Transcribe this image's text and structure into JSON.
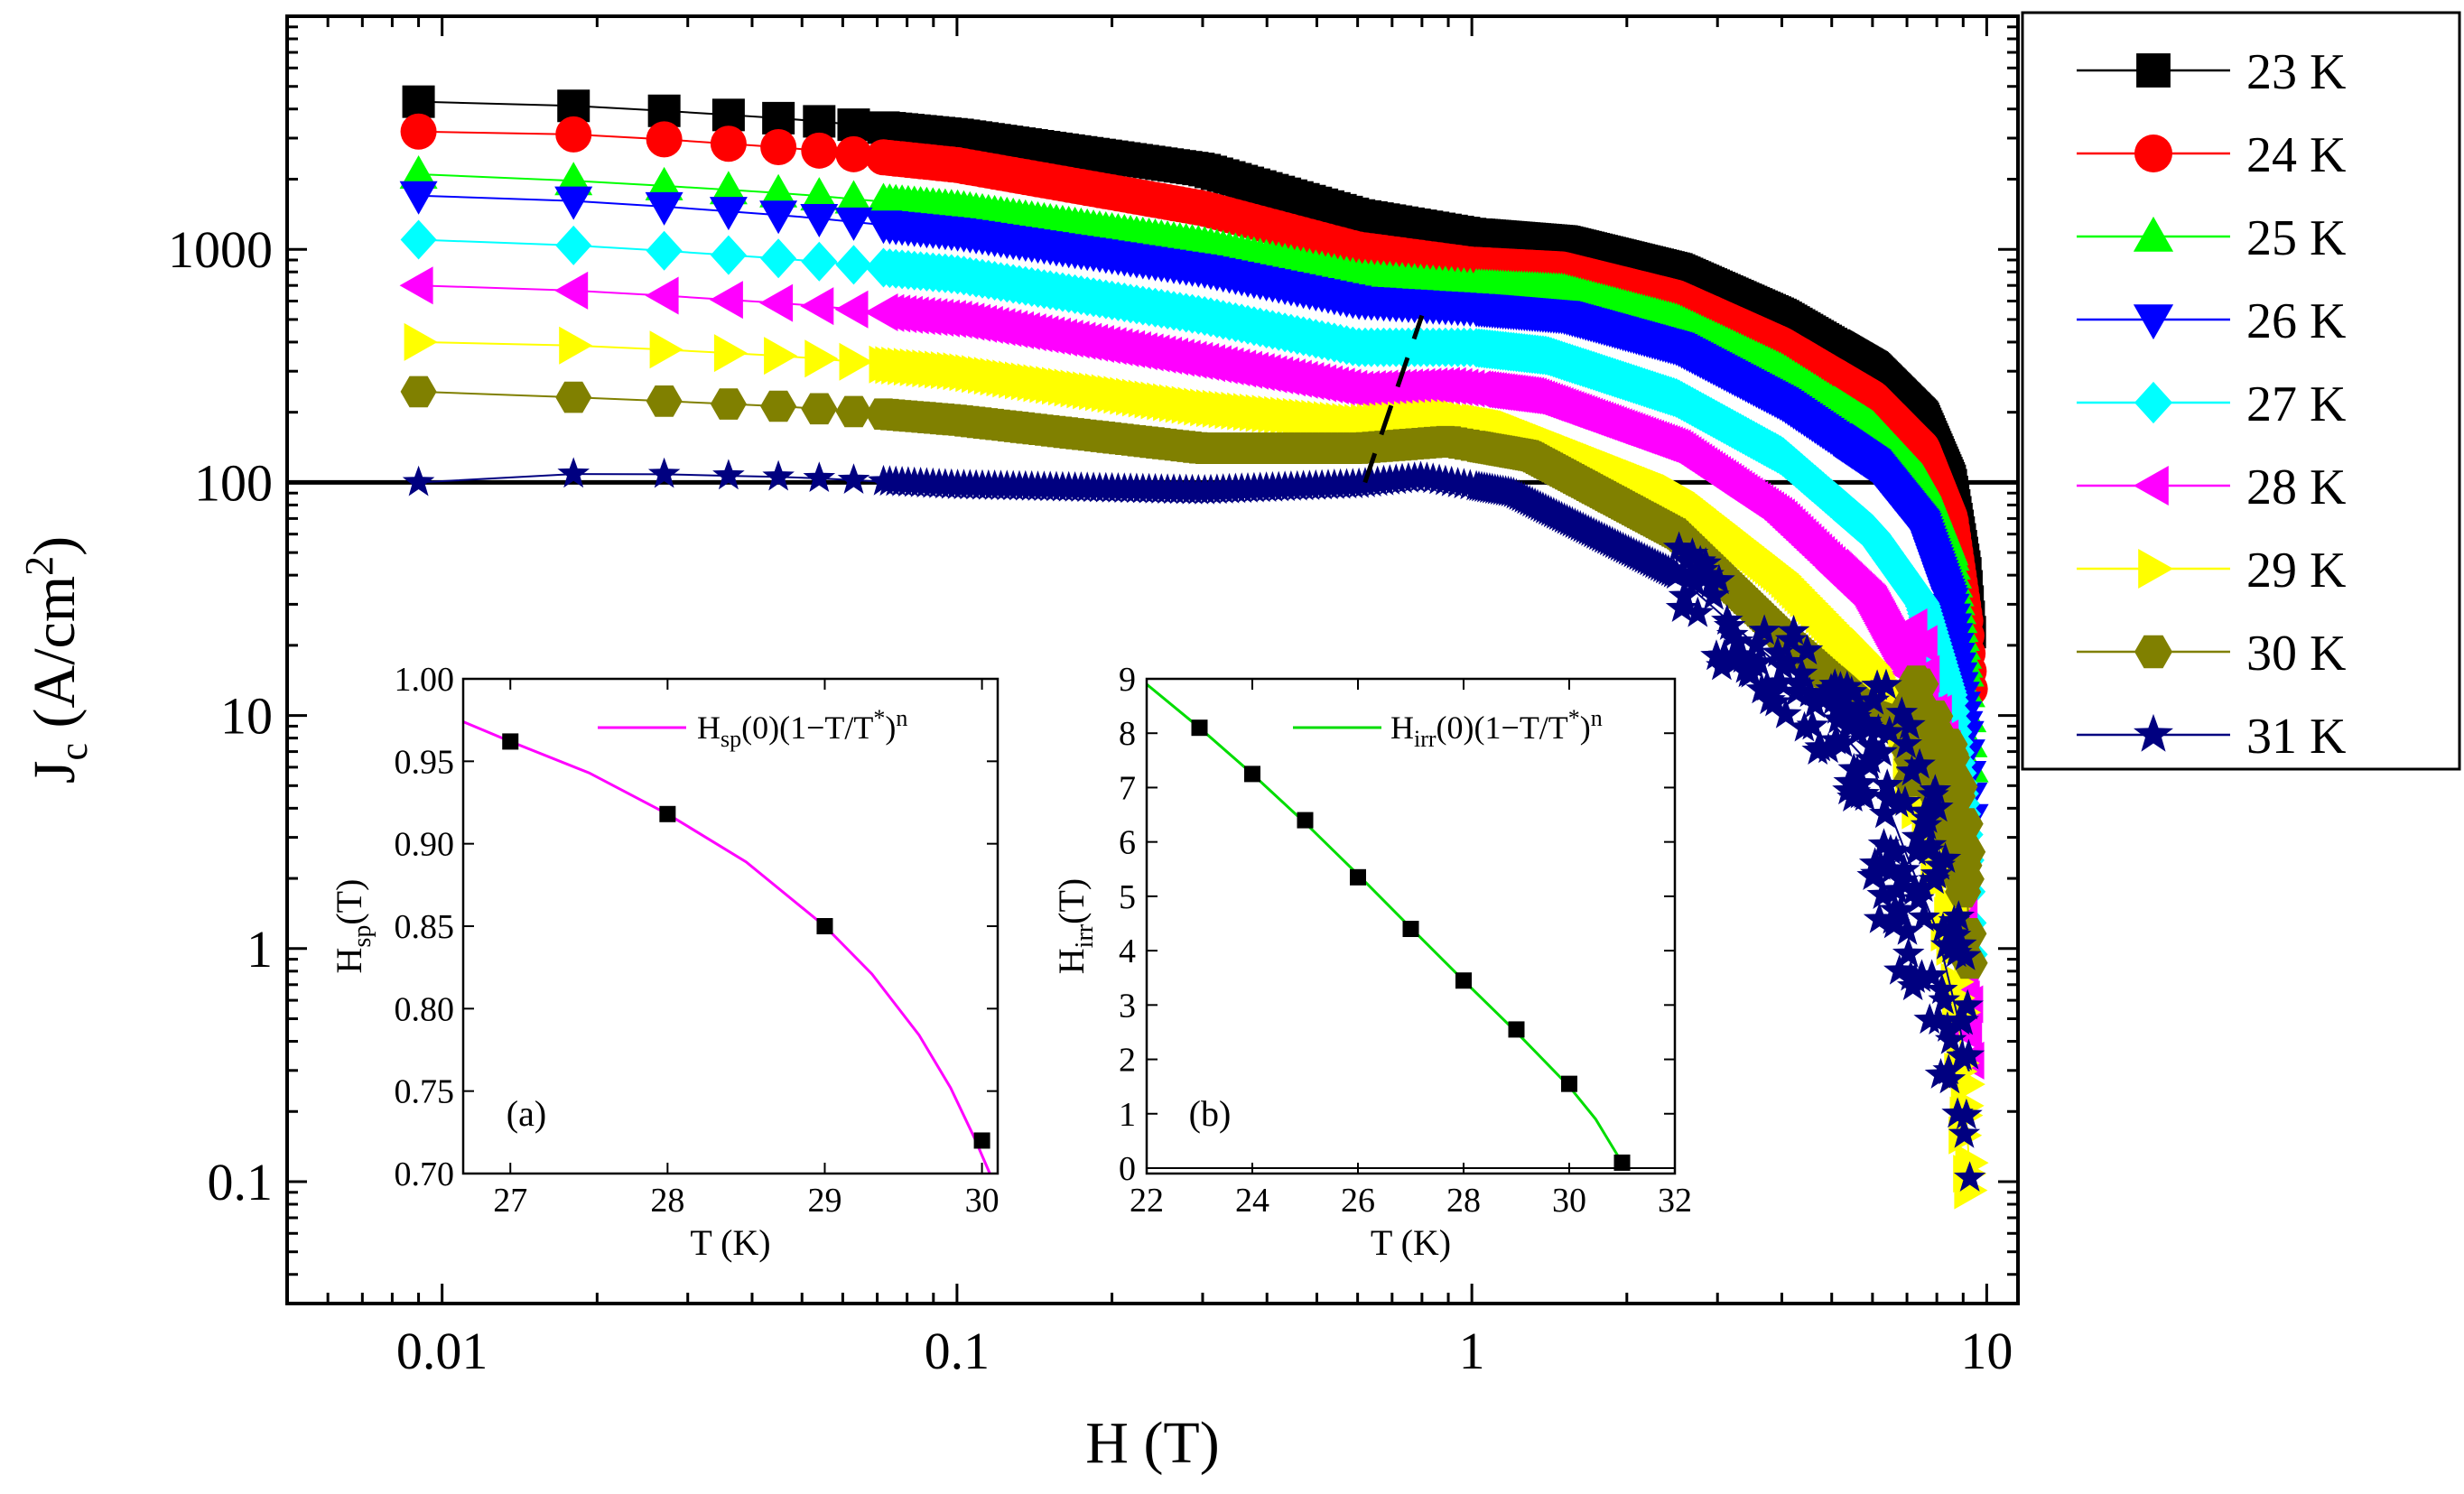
{
  "chart_data": [
    {
      "id": "main",
      "type": "scatter",
      "xscale": "log",
      "yscale": "log",
      "xlim": [
        0.005,
        11.5
      ],
      "ylim": [
        0.03,
        10000
      ],
      "xticks": [
        0.01,
        0.1,
        1,
        10
      ],
      "xtick_labels": [
        "0.01",
        "0.1",
        "1",
        "10"
      ],
      "yticks": [
        0.1,
        1,
        10,
        100,
        1000
      ],
      "ytick_labels": [
        "0.1",
        "1",
        "10",
        "100",
        "1000"
      ],
      "xlabel": "H (T)",
      "ylabel": {
        "base": "J",
        "sub": "c",
        "unit_open": " (A/cm",
        "sup": "2",
        "unit_close": ")"
      },
      "reference_line": {
        "y": 100
      },
      "dashed_line": {
        "points": [
          [
            0.62,
            100
          ],
          [
            0.8,
            520
          ]
        ]
      },
      "series": [
        {
          "name": "23 K",
          "color": "#000000",
          "marker": "square",
          "curve": [
            [
              0.009,
              4300
            ],
            [
              0.02,
              4100
            ],
            [
              0.05,
              3600
            ],
            [
              0.1,
              3100
            ],
            [
              0.3,
              2200
            ],
            [
              0.6,
              1400
            ],
            [
              1,
              1160
            ],
            [
              1.5,
              1080
            ],
            [
              2.5,
              820
            ],
            [
              4,
              520
            ],
            [
              6,
              310
            ],
            [
              7.5,
              190
            ],
            [
              8.5,
              100
            ],
            [
              9.1,
              40
            ],
            [
              9.4,
              15
            ]
          ]
        },
        {
          "name": "24 K",
          "color": "#ff0000",
          "marker": "circle",
          "curve": [
            [
              0.009,
              3200
            ],
            [
              0.02,
              3100
            ],
            [
              0.05,
              2700
            ],
            [
              0.1,
              2300
            ],
            [
              0.3,
              1500
            ],
            [
              0.6,
              1000
            ],
            [
              1,
              860
            ],
            [
              1.5,
              820
            ],
            [
              2.5,
              620
            ],
            [
              4,
              390
            ],
            [
              6,
              230
            ],
            [
              7.5,
              140
            ],
            [
              8.5,
              70
            ],
            [
              9.1,
              25
            ],
            [
              9.4,
              8
            ]
          ]
        },
        {
          "name": "25 K",
          "color": "#00ff00",
          "marker": "triangle-up",
          "curve": [
            [
              0.009,
              2100
            ],
            [
              0.02,
              1950
            ],
            [
              0.05,
              1720
            ],
            [
              0.1,
              1500
            ],
            [
              0.3,
              1050
            ],
            [
              0.6,
              760
            ],
            [
              1,
              690
            ],
            [
              1.5,
              660
            ],
            [
              2.5,
              490
            ],
            [
              4,
              300
            ],
            [
              6,
              170
            ],
            [
              7.5,
              100
            ],
            [
              8.5,
              50
            ],
            [
              9.1,
              15
            ],
            [
              9.4,
              3
            ]
          ]
        },
        {
          "name": "26 K",
          "color": "#0000ff",
          "marker": "triangle-down",
          "curve": [
            [
              0.009,
              1700
            ],
            [
              0.02,
              1600
            ],
            [
              0.05,
              1380
            ],
            [
              0.1,
              1180
            ],
            [
              0.3,
              820
            ],
            [
              0.6,
              600
            ],
            [
              1,
              560
            ],
            [
              1.5,
              520
            ],
            [
              2.5,
              380
            ],
            [
              4,
              220
            ],
            [
              6,
              120
            ],
            [
              7.5,
              65
            ],
            [
              8.5,
              30
            ],
            [
              9.1,
              8
            ],
            [
              9.4,
              2
            ]
          ]
        },
        {
          "name": "27 K",
          "color": "#00ffff",
          "marker": "diamond",
          "curve": [
            [
              0.009,
              1100
            ],
            [
              0.02,
              1030
            ],
            [
              0.05,
              900
            ],
            [
              0.1,
              780
            ],
            [
              0.3,
              520
            ],
            [
              0.6,
              380
            ],
            [
              1,
              380
            ],
            [
              1.4,
              350
            ],
            [
              2.5,
              230
            ],
            [
              4,
              130
            ],
            [
              6,
              60
            ],
            [
              7.5,
              30
            ],
            [
              8.5,
              12
            ],
            [
              9.1,
              3
            ],
            [
              9.4,
              0.4
            ]
          ]
        },
        {
          "name": "28 K",
          "color": "#ff00ff",
          "marker": "triangle-left",
          "curve": [
            [
              0.009,
              700
            ],
            [
              0.02,
              660
            ],
            [
              0.05,
              580
            ],
            [
              0.1,
              500
            ],
            [
              0.3,
              330
            ],
            [
              0.6,
              250
            ],
            [
              0.9,
              260
            ],
            [
              1.3,
              235
            ],
            [
              2.5,
              140
            ],
            [
              4,
              70
            ],
            [
              6,
              30
            ],
            [
              7.5,
              12
            ],
            [
              8.5,
              4
            ],
            [
              9.1,
              0.8
            ],
            [
              9.4,
              0.1
            ]
          ]
        },
        {
          "name": "29 K",
          "color": "#ffff00",
          "marker": "triangle-right",
          "curve": [
            [
              0.009,
              400
            ],
            [
              0.02,
              385
            ],
            [
              0.05,
              345
            ],
            [
              0.1,
              300
            ],
            [
              0.3,
              210
            ],
            [
              0.6,
              180
            ],
            [
              0.9,
              190
            ],
            [
              1.2,
              170
            ],
            [
              2.5,
              90
            ],
            [
              4,
              40
            ],
            [
              6,
              16
            ],
            [
              7.5,
              6
            ],
            [
              8.5,
              1.5
            ],
            [
              9.1,
              0.2
            ],
            [
              9.4,
              0.07
            ]
          ]
        },
        {
          "name": "30 K",
          "color": "#808000",
          "marker": "hexagon",
          "curve": [
            [
              0.009,
              245
            ],
            [
              0.02,
              230
            ],
            [
              0.05,
              210
            ],
            [
              0.1,
              185
            ],
            [
              0.3,
              140
            ],
            [
              0.6,
              140
            ],
            [
              0.9,
              150
            ],
            [
              1.3,
              130
            ],
            [
              2.5,
              60
            ],
            [
              4,
              22
            ],
            [
              6,
              10
            ],
            [
              8,
              8
            ],
            [
              9.1,
              2.4
            ],
            [
              9.4,
              0.5
            ]
          ]
        },
        {
          "name": "31 K",
          "color": "#000080",
          "marker": "star",
          "curve": [
            [
              0.009,
              100
            ],
            [
              0.02,
              110
            ],
            [
              0.05,
              105
            ],
            [
              0.1,
              97
            ],
            [
              0.3,
              92
            ],
            [
              0.6,
              98
            ],
            [
              0.8,
              105
            ],
            [
              1.2,
              90
            ],
            [
              2.5,
              40
            ],
            [
              4,
              16
            ],
            [
              6,
              6
            ],
            [
              7,
              2.5
            ],
            [
              8,
              1.2
            ],
            [
              8.8,
              0.5
            ],
            [
              9.2,
              0.3
            ]
          ]
        }
      ]
    },
    {
      "id": "inset-a",
      "type": "scatter",
      "panel_label": "(a)",
      "xlabel": "T (K)",
      "ylabel": {
        "base": "H",
        "sub": "sp",
        "unit": "(T)"
      },
      "xlim": [
        26.7,
        30.1
      ],
      "ylim": [
        0.7,
        1.0
      ],
      "xticks": [
        27,
        28,
        29,
        30
      ],
      "xtick_labels": [
        "27",
        "28",
        "29",
        "30"
      ],
      "yticks": [
        0.7,
        0.75,
        0.8,
        0.85,
        0.9,
        0.95,
        1.0
      ],
      "ytick_labels": [
        "0.70",
        "0.75",
        "0.80",
        "0.85",
        "0.90",
        "0.95",
        "1.00"
      ],
      "points": {
        "x": [
          27,
          28,
          29,
          30
        ],
        "y": [
          0.962,
          0.918,
          0.85,
          0.72
        ]
      },
      "fit": {
        "label": {
          "base": "H",
          "sub": "sp",
          "rest": "(0)(1−T/T",
          "sup": "*",
          "end": ")",
          "exp": "n"
        },
        "color": "#ff00ff",
        "x": [
          26.7,
          27,
          27.5,
          28,
          28.5,
          29,
          29.3,
          29.6,
          29.8,
          29.95,
          30.05
        ],
        "y": [
          0.974,
          0.962,
          0.943,
          0.918,
          0.889,
          0.85,
          0.821,
          0.784,
          0.752,
          0.722,
          0.7
        ]
      }
    },
    {
      "id": "inset-b",
      "type": "scatter",
      "panel_label": "(b)",
      "xlabel": "T (K)",
      "ylabel": {
        "base": "H",
        "sub": "irr",
        "unit": "(T)"
      },
      "xlim": [
        22,
        32
      ],
      "ylim": [
        -0.1,
        9
      ],
      "xticks": [
        22,
        24,
        26,
        28,
        30,
        32
      ],
      "xtick_labels": [
        "22",
        "24",
        "26",
        "28",
        "30",
        "32"
      ],
      "yticks": [
        0,
        1,
        2,
        3,
        4,
        5,
        6,
        7,
        8,
        9
      ],
      "ytick_labels": [
        "0",
        "1",
        "2",
        "3",
        "4",
        "5",
        "6",
        "7",
        "8",
        "9"
      ],
      "zero_line": 0,
      "points": {
        "x": [
          23,
          24,
          25,
          26,
          27,
          28,
          29,
          30,
          31
        ],
        "y": [
          8.1,
          7.25,
          6.4,
          5.35,
          4.4,
          3.45,
          2.55,
          1.55,
          0.1
        ]
      },
      "fit": {
        "label": {
          "base": "H",
          "sub": "irr",
          "rest": "(0)(1−T/T",
          "sup": "*",
          "end": ")",
          "exp": "n"
        },
        "color": "#00dd00",
        "x": [
          22,
          23,
          24,
          25,
          26,
          27,
          28,
          29,
          30,
          30.5,
          31
        ],
        "y": [
          8.9,
          8.1,
          7.25,
          6.35,
          5.4,
          4.42,
          3.45,
          2.5,
          1.5,
          0.9,
          0.1
        ]
      }
    }
  ]
}
